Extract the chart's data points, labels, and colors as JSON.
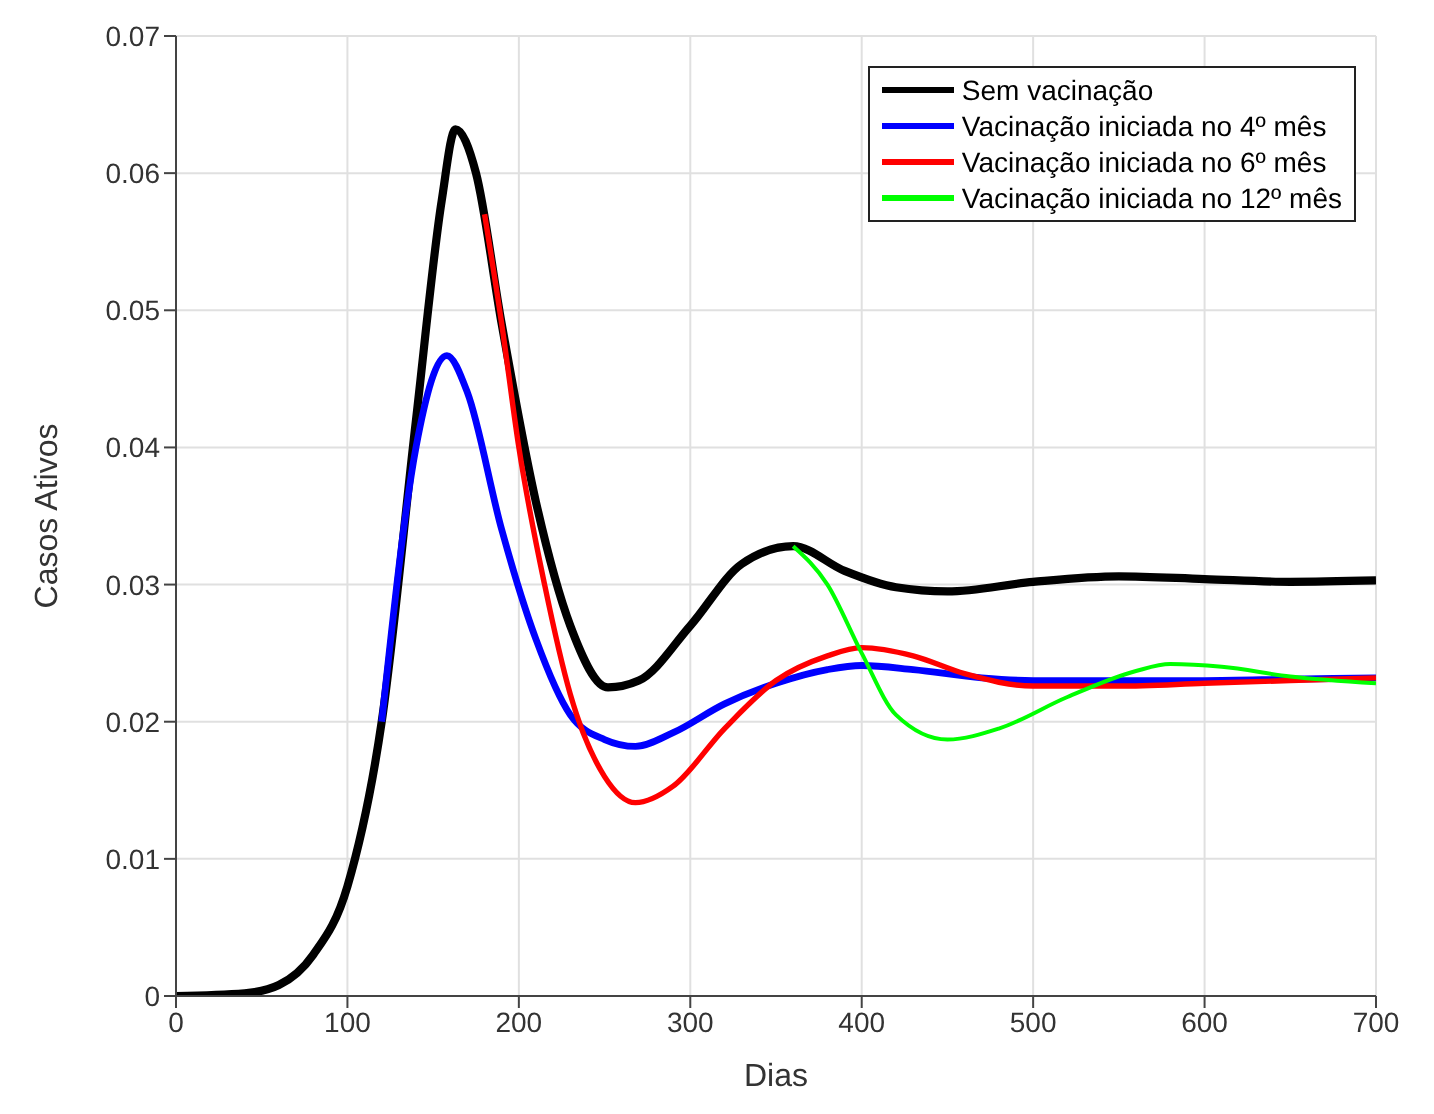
{
  "chart_data": {
    "type": "line",
    "xlabel": "Dias",
    "ylabel": "Casos Ativos",
    "xlim": [
      0,
      700
    ],
    "ylim": [
      0,
      0.07
    ],
    "xticks": [
      0,
      100,
      200,
      300,
      400,
      500,
      600,
      700
    ],
    "yticks": [
      0,
      0.01,
      0.02,
      0.03,
      0.04,
      0.05,
      0.06,
      0.07
    ],
    "grid": true,
    "legend": "top right",
    "marker": "none",
    "line_style": "solid",
    "series": [
      {
        "name": "Sem vacinação",
        "color": "#000000",
        "x": [
          0,
          40,
          60,
          80,
          100,
          120,
          140,
          155,
          163,
          175,
          190,
          210,
          230,
          252,
          270,
          300,
          330,
          360,
          390,
          420,
          450,
          500,
          550,
          600,
          650,
          700
        ],
        "values": [
          0,
          0.0002,
          0.0008,
          0.003,
          0.008,
          0.02,
          0.042,
          0.058,
          0.0632,
          0.06,
          0.049,
          0.036,
          0.027,
          0.0225,
          0.023,
          0.027,
          0.0315,
          0.0328,
          0.031,
          0.0298,
          0.0295,
          0.0302,
          0.0306,
          0.0304,
          0.0302,
          0.0303
        ]
      },
      {
        "name": "Vacinação iniciada no 4º mês",
        "color": "#0000ff",
        "x": [
          120,
          140,
          158,
          170,
          190,
          210,
          230,
          250,
          268,
          290,
          320,
          350,
          380,
          400,
          430,
          470,
          500,
          550,
          600,
          650,
          700
        ],
        "values": [
          0.02,
          0.04,
          0.0467,
          0.044,
          0.034,
          0.026,
          0.0205,
          0.0187,
          0.0182,
          0.0192,
          0.0213,
          0.0228,
          0.0238,
          0.0241,
          0.0238,
          0.0232,
          0.023,
          0.023,
          0.023,
          0.0231,
          0.0232
        ]
      },
      {
        "name": "Vacinação iniciada no 6º mês",
        "color": "#ff0000",
        "x": [
          180,
          190,
          200,
          215,
          230,
          250,
          268,
          290,
          320,
          350,
          380,
          400,
          430,
          460,
          500,
          550,
          600,
          650,
          700
        ],
        "values": [
          0.057,
          0.049,
          0.04,
          0.03,
          0.022,
          0.016,
          0.0141,
          0.0153,
          0.0195,
          0.023,
          0.0248,
          0.0254,
          0.0248,
          0.0235,
          0.0226,
          0.0226,
          0.0228,
          0.023,
          0.0232
        ]
      },
      {
        "name": "Vacinação iniciada no 12º mês",
        "color": "#00ff00",
        "x": [
          360,
          380,
          400,
          420,
          450,
          480,
          520,
          560,
          580,
          610,
          650,
          700
        ],
        "values": [
          0.0328,
          0.03,
          0.025,
          0.0205,
          0.0187,
          0.0195,
          0.0218,
          0.0237,
          0.0242,
          0.024,
          0.0233,
          0.0228
        ]
      }
    ]
  }
}
